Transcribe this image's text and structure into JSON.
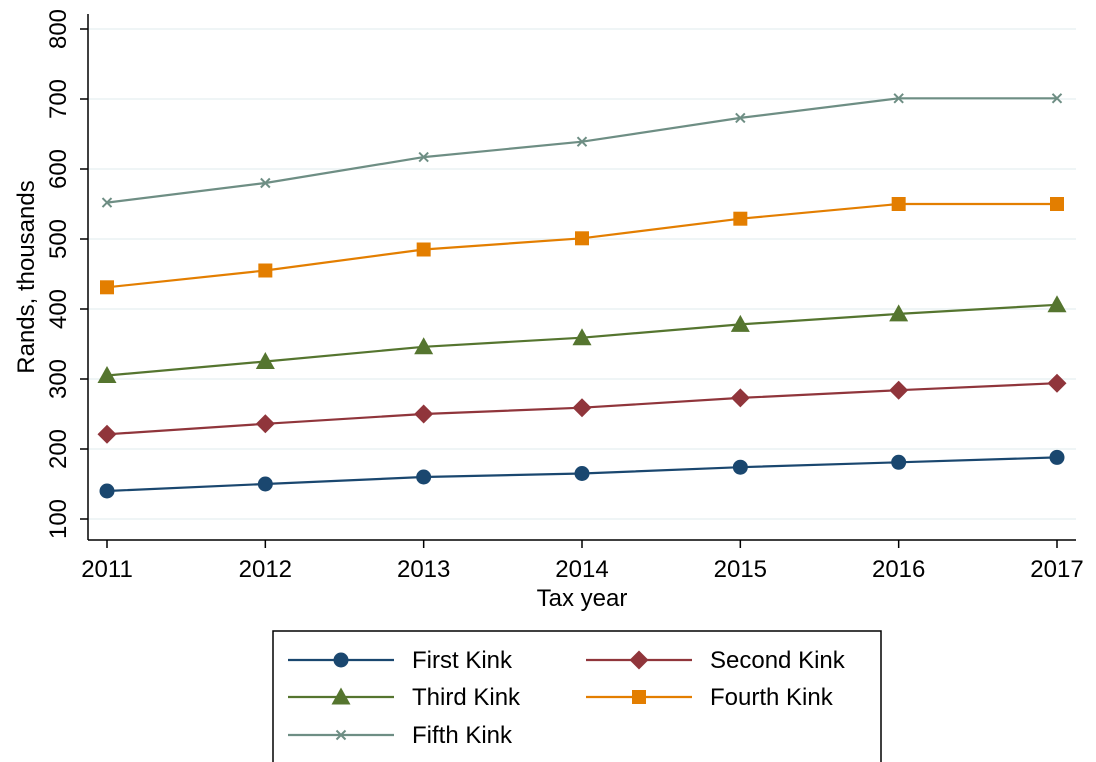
{
  "chart_data": {
    "type": "line",
    "xlabel": "Tax year",
    "ylabel": "Rands, thousands",
    "x": [
      2011,
      2012,
      2013,
      2014,
      2015,
      2016,
      2017
    ],
    "xticks": [
      "2011",
      "2012",
      "2013",
      "2014",
      "2015",
      "2016",
      "2017"
    ],
    "yticks": [
      "100",
      "200",
      "300",
      "400",
      "500",
      "600",
      "700",
      "800"
    ],
    "ylim": [
      100,
      800
    ],
    "grid": true,
    "legend_position": "bottom",
    "series": [
      {
        "name": "First Kink",
        "color": "#1a476f",
        "marker": "circle",
        "values": [
          140,
          150,
          160,
          165,
          174,
          181,
          188
        ]
      },
      {
        "name": "Second Kink",
        "color": "#90353b",
        "marker": "diamond",
        "values": [
          221,
          236,
          250,
          259,
          273,
          284,
          294
        ]
      },
      {
        "name": "Third Kink",
        "color": "#55752f",
        "marker": "triangle",
        "values": [
          305,
          325,
          346,
          359,
          378,
          393,
          406
        ]
      },
      {
        "name": "Fourth Kink",
        "color": "#e37e00",
        "marker": "square",
        "values": [
          431,
          455,
          485,
          501,
          529,
          550,
          550
        ]
      },
      {
        "name": "Fifth Kink",
        "color": "#6e8e84",
        "marker": "x",
        "values": [
          552,
          580,
          617,
          639,
          673,
          701,
          701
        ]
      }
    ]
  }
}
